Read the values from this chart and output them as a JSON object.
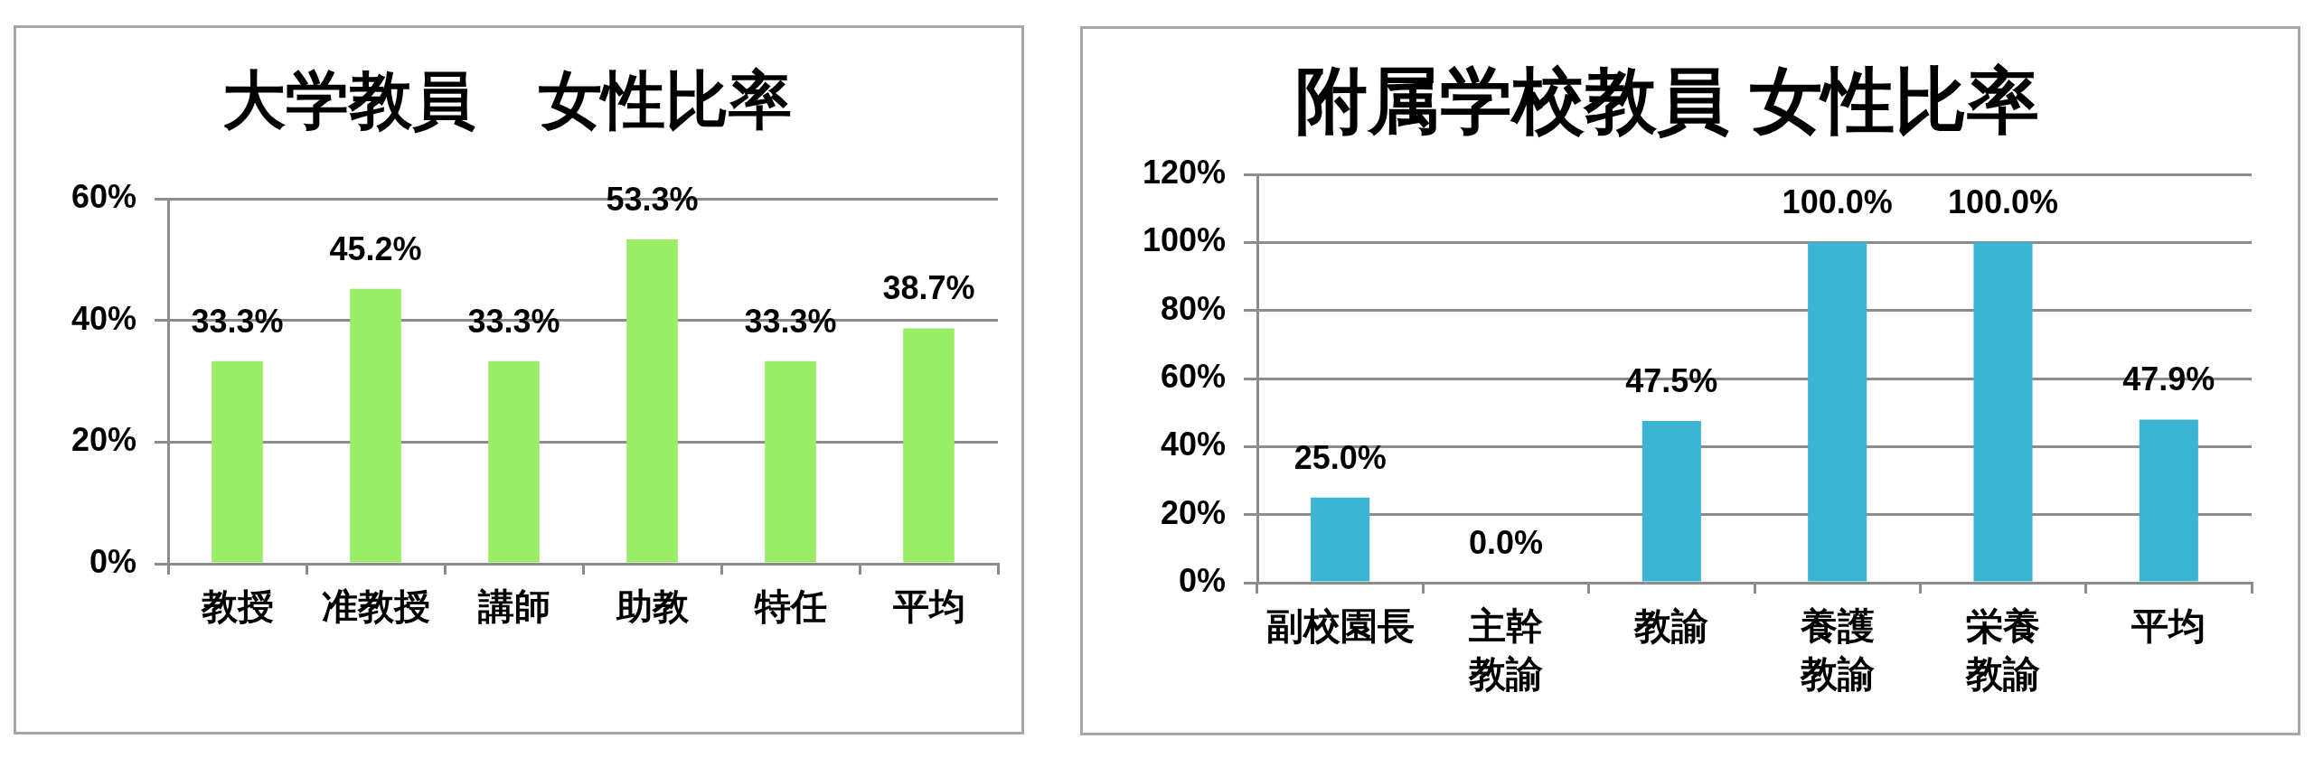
{
  "chart_data": [
    {
      "type": "bar",
      "title": "大学教員　女性比率",
      "categories": [
        "教授",
        "准教授",
        "講師",
        "助教",
        "特任",
        "平均"
      ],
      "values": [
        33.3,
        45.2,
        33.3,
        53.3,
        33.3,
        38.7
      ],
      "value_labels": [
        "33.3%",
        "45.2%",
        "33.3%",
        "53.3%",
        "33.3%",
        "38.7%"
      ],
      "color": "#99ee66",
      "ylim": [
        0,
        60
      ],
      "yticks": [
        {
          "value": 0,
          "label": "0%"
        },
        {
          "value": 20,
          "label": "20%"
        },
        {
          "value": 40,
          "label": "40%"
        },
        {
          "value": 60,
          "label": "60%"
        }
      ],
      "grid": "y"
    },
    {
      "type": "bar",
      "title": "附属学校教員 女性比率",
      "categories": [
        "副校園長",
        "主幹教諭",
        "教諭",
        "養護教諭",
        "栄養教諭",
        "平均"
      ],
      "values": [
        25.0,
        0.0,
        47.5,
        100.0,
        100.0,
        47.9
      ],
      "value_labels": [
        "25.0%",
        "0.0%",
        "47.5%",
        "100.0%",
        "100.0%",
        "47.9%"
      ],
      "color": "#3cb4d4",
      "ylim": [
        0,
        120
      ],
      "yticks": [
        {
          "value": 0,
          "label": "0%"
        },
        {
          "value": 20,
          "label": "20%"
        },
        {
          "value": 40,
          "label": "40%"
        },
        {
          "value": 60,
          "label": "60%"
        },
        {
          "value": 80,
          "label": "80%"
        },
        {
          "value": 100,
          "label": "100%"
        },
        {
          "value": 120,
          "label": "120%"
        }
      ],
      "grid": "y"
    }
  ]
}
